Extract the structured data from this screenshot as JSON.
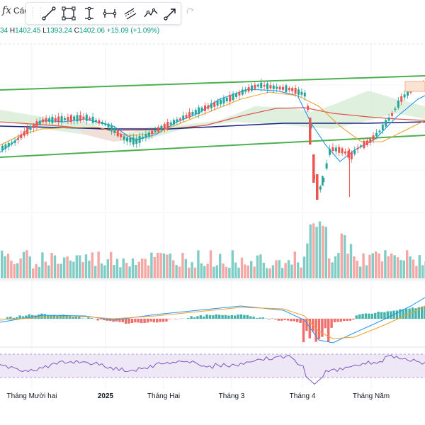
{
  "header": {
    "fx_symbol": "fx",
    "partial_label": "Các"
  },
  "toolbar": {
    "tools": [
      {
        "name": "trend-line-icon"
      },
      {
        "name": "rectangle-icon"
      },
      {
        "name": "vertical-range-icon"
      },
      {
        "name": "horizontal-range-icon"
      },
      {
        "name": "parallel-channel-icon"
      },
      {
        "name": "path-icon"
      },
      {
        "name": "arrow-tool-icon"
      }
    ],
    "redo_icon": "redo-icon"
  },
  "legend": {
    "open_tail": "34",
    "high_key": "H",
    "high": "1402.45",
    "low_key": "L",
    "low": "1393.24",
    "close_key": "C",
    "close": "1402.06",
    "change": "+15.09 (+1.09%)"
  },
  "colors": {
    "up": "#26a69a",
    "down": "#ef5350",
    "up_volume": "#7fcdc4",
    "down_volume": "#f5a7a6",
    "channel": "#4caf50",
    "ma_red": "#e05550",
    "ma_navy": "#1a237e",
    "ma_blue": "#2196f3",
    "ma_orange": "#f0a030",
    "cloud": "#d4ebd4",
    "rsi_band": "#ede7f6",
    "rsi_line": "#7e57c2"
  },
  "chart_data": {
    "type": "candlestick",
    "x_labels": [
      "Tháng Mười hai",
      "2025",
      "Tháng Hai",
      "Tháng 3",
      "Tháng 4",
      "Tháng Năm"
    ],
    "last": {
      "high": 1402.45,
      "low": 1393.24,
      "close": 1402.06,
      "change": 15.09,
      "change_percent": 1.09
    },
    "panes": [
      "price",
      "volume",
      "macd",
      "rsi"
    ]
  }
}
